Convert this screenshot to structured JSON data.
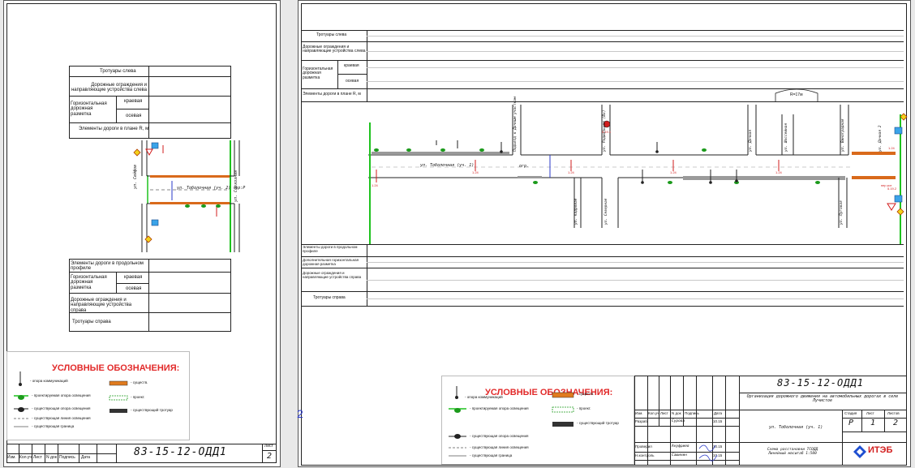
{
  "sheet1": {
    "table_top": {
      "rows": [
        "Тротуары слева",
        "Дорожные ограждения и направляющие устройства слева",
        "Горизонтальная дорожная разметка",
        "Элементы дороги в плане R, м"
      ],
      "sub": [
        "краевая",
        "осевая"
      ]
    },
    "street_label": "ул. Тоболочная (уч. 2) тер:Р",
    "side_labels": [
      "ул. Сейфов",
      "ул. Совхозная"
    ],
    "table_bottom": {
      "rows": [
        "Элементы дороги в продольном профиле",
        "Горизонтальная дорожная разметка",
        "Дорожные ограждения и направляющие устройства справа",
        "Тротуары справа"
      ],
      "sub": [
        "краевая",
        "осевая"
      ]
    },
    "legend": {
      "title": "УСЛОВНЫЕ ОБОЗНАЧЕНИЯ:",
      "items_left": [
        "- опора коммуникаций",
        "- проектируемая опора освещения",
        "- существующая опора освещения",
        "- существующая линия освещения",
        "- существующая граница"
      ],
      "items_right": [
        "- существ.",
        "- проект.",
        "- существующий тротуар"
      ]
    },
    "stamp": {
      "code": "83-15-12-ОДД1",
      "cols": [
        "Изм.",
        "Кол.уч",
        "Лист",
        "N док",
        "Подпись",
        "Дата"
      ],
      "sheet_label": "Лист",
      "sheet_no": "2"
    }
  },
  "sheet2": {
    "table_top": {
      "rows": [
        "Тротуары слева",
        "Дорожные ограждения и направляющие устройства слева",
        "Горизонтальная дорожная разметка",
        "Элементы дороги в плане R, м"
      ],
      "sub": [
        "краевая",
        "осевая"
      ],
      "curve_label": "R=17м"
    },
    "street_label": "ул. Тоболочная (уч. 1)",
    "mid_label": "огр.",
    "cross_streets": [
      "Подъезд к Дачным участкам",
      "ул. Радиальная (Вх)",
      "ул. Северная",
      "ул. Дачная",
      "ул. Шоссейная",
      "ул. Кадровая",
      "ул. Луговая",
      "ул. Виноградная",
      "ул. Дачная 2"
    ],
    "sign_labels": [
      "1.24",
      "1.24",
      "1.24",
      "1.24",
      "1.24",
      "5.19.1",
      "1.24",
      "5.19.2",
      "пер.кот"
    ],
    "table_bottom": {
      "rows": [
        "Элементы дороги в продольном профиле",
        "Дополнительная горизонтальная дорожная разметка",
        "Дорожные ограждения и направляющие устройства справа",
        "Тротуары справа"
      ]
    },
    "legend": {
      "title": "УСЛОВНЫЕ ОБОЗНАЧЕНИЯ:",
      "items_left": [
        "- опора коммуникаций",
        "- проектируемая опора освещения",
        "- существующая опора освещения",
        "- существующая линия освещения",
        "- существующая граница"
      ],
      "items_right": [
        "- существ.",
        "- проект.",
        "- существующий тротуар"
      ]
    },
    "stamp": {
      "code": "83-15-12-ОДД1",
      "title": "Организация дорожного движения на автомобильных дорогах в селе Лучистое",
      "cols": [
        "Изм.",
        "Кол.уч",
        "Лист",
        "N док",
        "Подпись",
        "Дата"
      ],
      "people": [
        {
          "role": "Разраб.",
          "name": "Сурова",
          "date": "10.15"
        },
        {
          "role": "Проверил",
          "name": "Ануфриев",
          "date": "10.15"
        },
        {
          "role": "Н.контроль",
          "name": "Сашинин",
          "date": "10.15"
        }
      ],
      "drawing": "ул. Тоболочная (уч. 1)",
      "scheme": "Схема расстановки ТСОДД Линейный масштаб 1:500",
      "stage_label": "Стадия",
      "sheet_label": "Лист",
      "sheets_label": "Листов",
      "stage": "Р",
      "sheet": "1",
      "sheets": "2",
      "logo": "ИТЭБ"
    },
    "margin_mark": "2"
  }
}
